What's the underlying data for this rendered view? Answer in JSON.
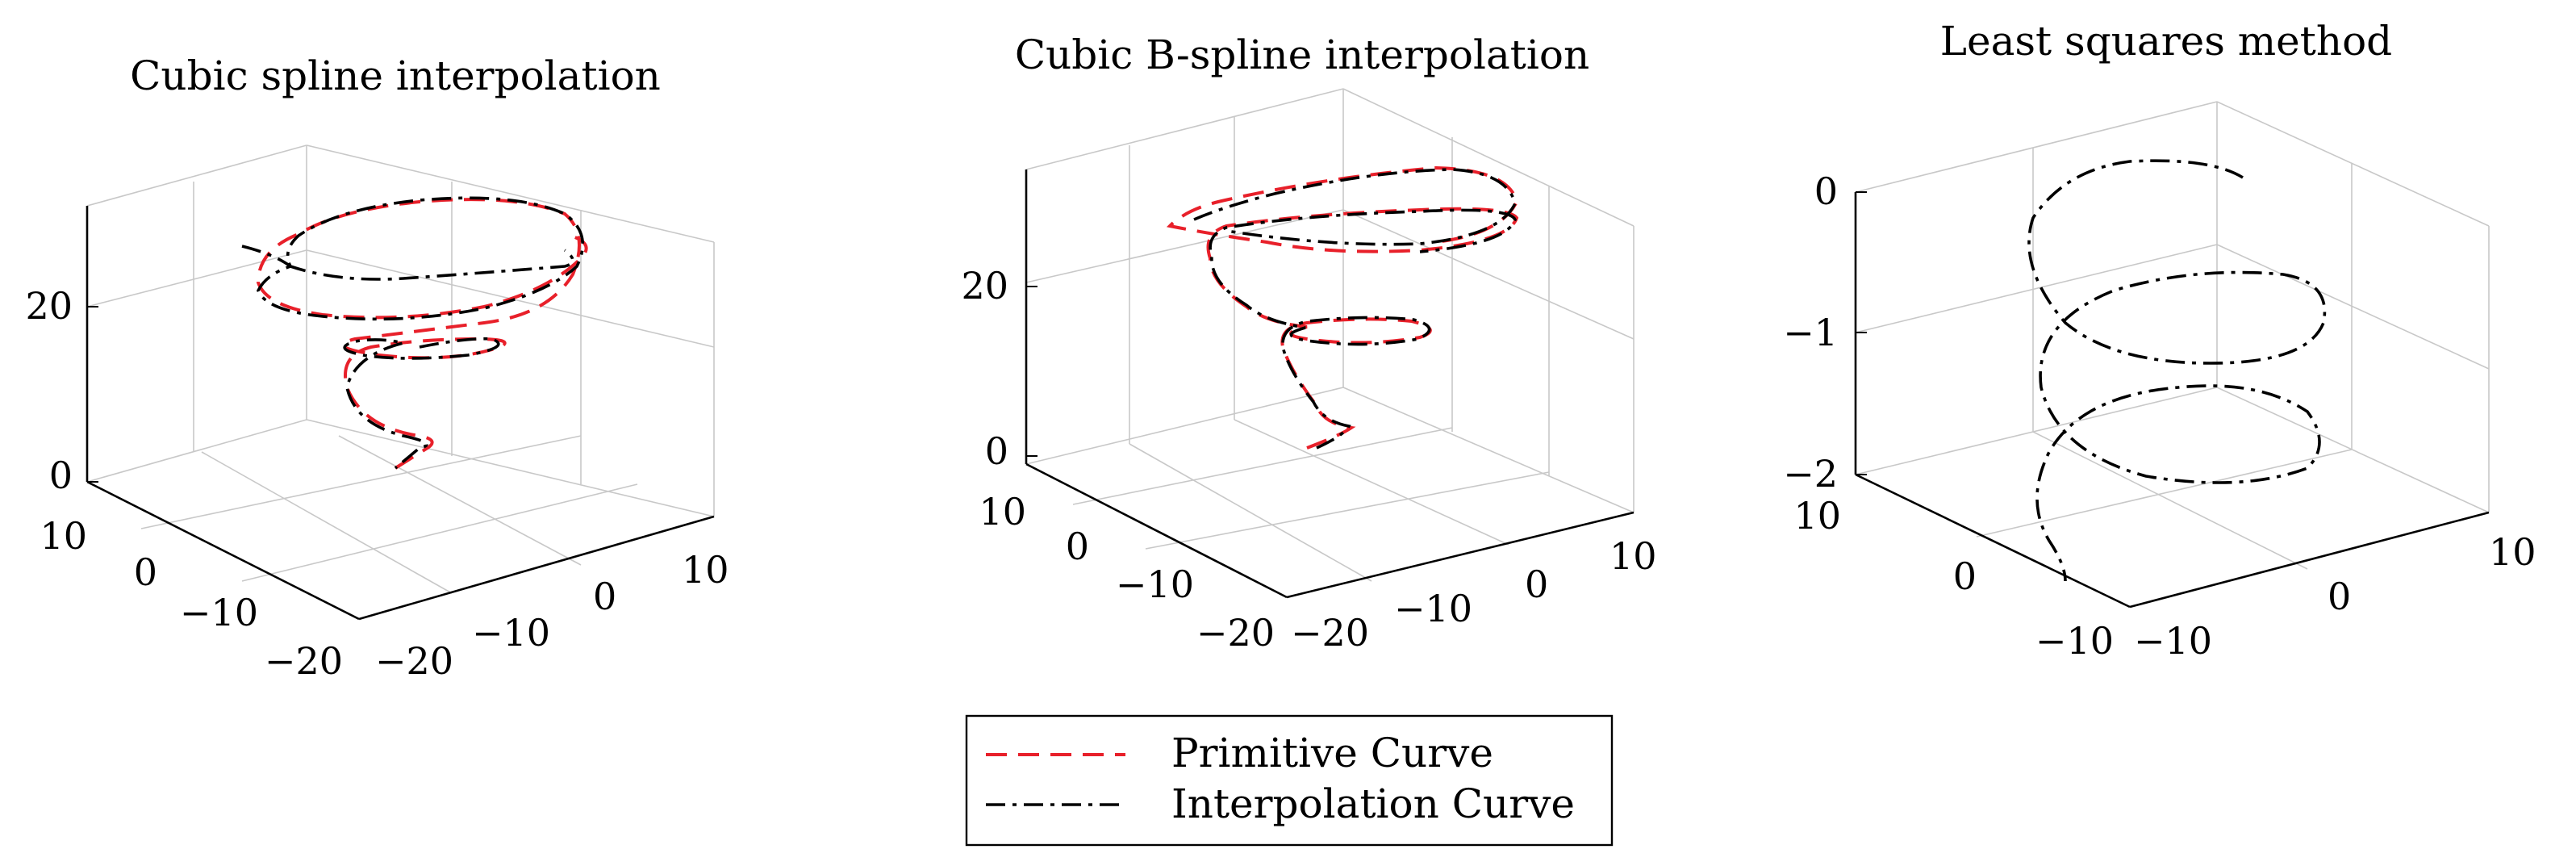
{
  "chart_data": [
    {
      "type": "line",
      "title": "Cubic spline interpolation",
      "x_ticks": [
        "10",
        "0",
        "−10",
        "−20"
      ],
      "y_ticks": [
        "−20",
        "−10",
        "0",
        "10"
      ],
      "z_ticks": [
        "0",
        "20"
      ],
      "grid": true,
      "series": [
        {
          "name": "Primitive Curve",
          "color": "#e8202a",
          "style": "dashed"
        },
        {
          "name": "Interpolation Curve",
          "color": "#000000",
          "style": "dashdot"
        }
      ]
    },
    {
      "type": "line",
      "title": "Cubic B-spline interpolation",
      "x_ticks": [
        "10",
        "0",
        "−10",
        "−20"
      ],
      "y_ticks": [
        "−20",
        "−10",
        "0",
        "10"
      ],
      "z_ticks": [
        "0",
        "20"
      ],
      "grid": true,
      "series": [
        {
          "name": "Primitive Curve",
          "color": "#e8202a",
          "style": "dashed"
        },
        {
          "name": "Interpolation Curve",
          "color": "#000000",
          "style": "dashdot"
        }
      ]
    },
    {
      "type": "line",
      "title": "Least squares method",
      "x_ticks": [
        "10",
        "0",
        "−10"
      ],
      "y_ticks": [
        "−10",
        "0",
        "10"
      ],
      "z_ticks": [
        "0",
        "−1",
        "−2"
      ],
      "grid": true,
      "series": [
        {
          "name": "Interpolation Curve",
          "color": "#000000",
          "style": "dashdot"
        }
      ]
    }
  ],
  "legend": {
    "placement": "bottom-center",
    "items": [
      {
        "label": "Primitive Curve",
        "color": "#e8202a",
        "style": "dashed"
      },
      {
        "label": "Interpolation Curve",
        "color": "#000000",
        "style": "dashdot"
      }
    ]
  }
}
